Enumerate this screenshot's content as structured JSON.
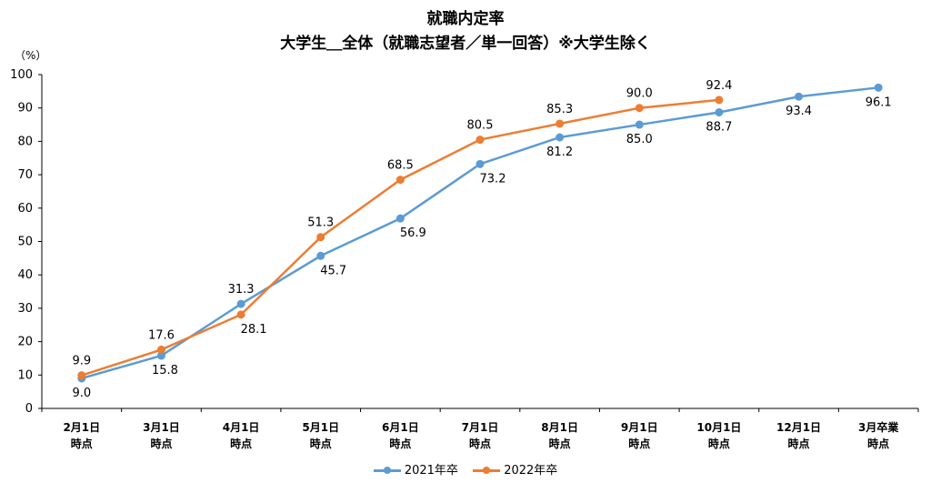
{
  "title": "就職内定率",
  "subtitle": "大学生＿全体（就職志望者／単一回答）※大学生除く",
  "unit_label": "（%）",
  "chart_data": {
    "type": "line",
    "categories": [
      "2月1日\n時点",
      "3月1日\n時点",
      "4月1日\n時点",
      "5月1日\n時点",
      "6月1日\n時点",
      "7月1日\n時点",
      "8月1日\n時点",
      "9月1日\n時点",
      "10月1日\n時点",
      "12月1日\n時点",
      "3月卒業\n時点"
    ],
    "ylim": [
      0,
      100
    ],
    "yticks": [
      0,
      10,
      20,
      30,
      40,
      50,
      60,
      70,
      80,
      90,
      100
    ],
    "series": [
      {
        "name": "2021年卒",
        "color": "#5b9bd5",
        "values": [
          9.0,
          15.8,
          31.3,
          45.7,
          56.9,
          73.2,
          81.2,
          85.0,
          88.7,
          93.4,
          96.1
        ]
      },
      {
        "name": "2022年卒",
        "color": "#ed7d31",
        "values": [
          9.9,
          17.6,
          28.1,
          51.3,
          68.5,
          80.5,
          85.3,
          90.0,
          92.4,
          null,
          null
        ]
      }
    ],
    "legend": "bottom"
  }
}
